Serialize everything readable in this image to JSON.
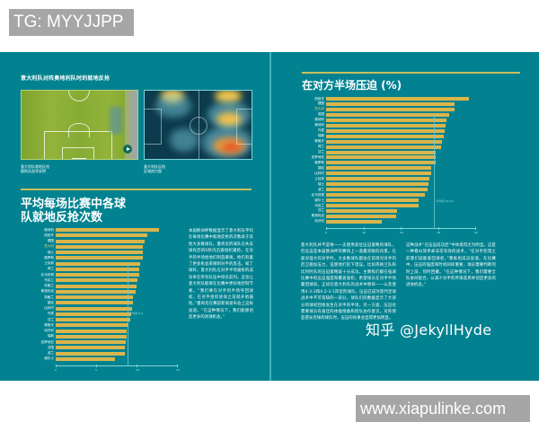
{
  "watermarks": {
    "top": "TG: MYYJJPP",
    "bottom": "www.xiapulinke.com",
    "zhihu": "知乎 @JekyllHyde"
  },
  "colors": {
    "background": "#028290",
    "bar": "#d9b54c",
    "rule": "#c8c05a",
    "highlight_label": "#e8c85a"
  },
  "left_page": {
    "figure_caption": "意大利队对阵奥地利队时的就地反抢",
    "photo_caption": [
      "意大利队就地反抢",
      "图例及战术说明"
    ],
    "heatmap_caption": [
      "意大利队反抢",
      "区域热力图"
    ],
    "body_text": "本届欧洲杯数据显示了意大利队平均在每场比赛中就地反抢的次数高于其他大多数球队。曼奇尼的球队在失去球权后的6秒内迅速组织逼抢，在对手的半场给他们制造麻烦。他们有着了更多机会来限制对手的反击。知了球科，意大利队在对手半场逼抢的成功率在所有队伍中排名前列。这也让意大利队能够在比赛中更好地控制节奏。“我们要在对手的半场夺回球权，在对手组织进攻之前就开始逼抢。”曼奇尼在赛前新闻发布会上这样说道。“在这种情况下，我们能够创造更多的进球机会。”"
  },
  "right_page": {
    "body_left": "意大利队并不是唯一一支使用高位压迫策略的球队，但压迫是本届欧洲杯的赛场上一道最亮眼的风景。在面对强大的对手时，大多数球队都会在前场对对手的后卫施加压力，迫使他们犯下错误。比如英格兰队和比利时队的压迫策略就十分成功。主教练们都在强调比赛中的压迫强度和覆盖面积，希望球员在对手半场赢回球权。正如在意大利队的战术中那样——以及使用4-3-3和4-2-3-1阵型的球队，压迫已成为现代足球战术中不可或缺的一部分。球队们的数据显示了大部分的球权回收发生在对手的半场。另一方面，压迫也需要球员有极佳的体能储备和团队协作意识。对阵那些擅长控球的球队时，压迫的效果会显得更加明显。",
    "body_right": "这种战术“在压迫成功后”中体现得尤为明显。这是一种看似简单却非常有效的战术，“在对手犯错之前我们就能拿回球权，”教练组成员说道。在比赛中，压迫的强度和时机同样重要，球员需要判断何时上前，何时回撤。“在这种情况下，我们需要全队协同配合，以减少对手的传球选择并创造更多的进攻机会。”"
  },
  "chart_data": [
    {
      "type": "bar",
      "orientation": "horizontal",
      "title": "平均每场比赛中各球队就地反抢次数",
      "categories": [
        "奥地利",
        "西班牙",
        "德国",
        "意大利",
        "瑞士",
        "俄罗斯",
        "土耳其",
        "荷兰",
        "北马其顿",
        "乌克兰",
        "苏格兰",
        "斯洛伐克",
        "英格兰",
        "捷克",
        "比利时",
        "丹麦",
        "芬兰",
        "葡萄牙",
        "匈牙利",
        "瑞典",
        "克罗地亚",
        "法国",
        "波兰",
        "威尔士"
      ],
      "values": [
        12.8,
        11.3,
        11.0,
        10.8,
        10.8,
        10.8,
        10.4,
        10.3,
        10.3,
        10.1,
        10.0,
        9.9,
        9.6,
        9.5,
        9.4,
        9.3,
        9.2,
        9.0,
        8.8,
        8.8,
        8.7,
        8.6,
        8.5,
        7.3
      ],
      "highlight": "意大利",
      "reference_line": {
        "label": "平均值 8.9",
        "value": 8.9
      },
      "xticks": [
        0,
        5,
        10,
        15
      ],
      "xlim": [
        0,
        15
      ],
      "xlabel": "",
      "ylabel": ""
    },
    {
      "type": "bar",
      "orientation": "horizontal",
      "title": "在对方半场压迫 (%)",
      "categories": [
        "西班牙",
        "德国",
        "意大利",
        "英国",
        "奥地利",
        "奥地利",
        "丹麦",
        "瑞典",
        "葡萄牙",
        "荷兰",
        "芬兰",
        "克罗地亚",
        "俄罗斯",
        "捷克",
        "比利时",
        "土耳其",
        "瑞士",
        "波兰",
        "北马其顿",
        "威尔士",
        "乌克兰",
        "芬兰",
        "斯洛伐克",
        "匈牙利"
      ],
      "values": [
        38.2,
        34.5,
        34.4,
        33.0,
        32.3,
        32.0,
        31.7,
        31.6,
        31.2,
        30.8,
        29.5,
        29.4,
        29.4,
        28.3,
        28.1,
        27.8,
        27.5,
        27.3,
        26.6,
        24.9,
        24.9,
        19.1,
        18.9,
        15.0
      ],
      "highlight": "意大利",
      "reference_line": {
        "label": "平均值 29.0%",
        "value": 29.0
      },
      "xticks": [
        0,
        10,
        20,
        30,
        40
      ],
      "xlim": [
        0,
        40
      ],
      "xlabel": "",
      "ylabel": ""
    }
  ]
}
